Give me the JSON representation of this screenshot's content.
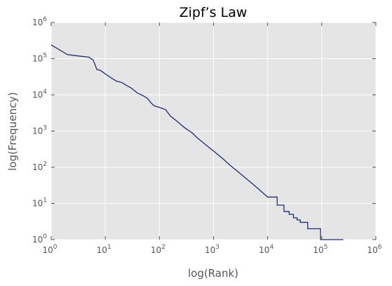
{
  "chart_data": {
    "type": "line",
    "title": "Zipf’s Law",
    "xlabel": "log(Rank)",
    "ylabel": "log(Frequency)",
    "x_scale": "log",
    "y_scale": "log",
    "xlim": [
      1,
      1000000
    ],
    "ylim": [
      1,
      1000000
    ],
    "grid": true,
    "background_color": "#e5e5e5",
    "grid_color": "#ffffff",
    "line_color": "#1f2a7a",
    "x_ticks": [
      {
        "base": "10",
        "exp": "0",
        "value": 1
      },
      {
        "base": "10",
        "exp": "1",
        "value": 10
      },
      {
        "base": "10",
        "exp": "2",
        "value": 100
      },
      {
        "base": "10",
        "exp": "3",
        "value": 1000
      },
      {
        "base": "10",
        "exp": "4",
        "value": 10000
      },
      {
        "base": "10",
        "exp": "5",
        "value": 100000
      },
      {
        "base": "10",
        "exp": "6",
        "value": 1000000
      }
    ],
    "y_ticks": [
      {
        "base": "10",
        "exp": "0",
        "value": 1
      },
      {
        "base": "10",
        "exp": "1",
        "value": 10
      },
      {
        "base": "10",
        "exp": "2",
        "value": 100
      },
      {
        "base": "10",
        "exp": "3",
        "value": 1000
      },
      {
        "base": "10",
        "exp": "4",
        "value": 10000
      },
      {
        "base": "10",
        "exp": "5",
        "value": 100000
      },
      {
        "base": "10",
        "exp": "6",
        "value": 1000000
      }
    ],
    "series": [
      {
        "x": [
          1,
          2,
          3,
          5,
          6,
          7,
          8,
          10,
          13,
          16,
          20,
          25,
          30,
          40,
          50,
          60,
          70,
          80,
          100,
          130,
          160,
          200,
          250,
          300,
          400,
          500,
          700,
          1000,
          1500,
          2000,
          3000,
          5000,
          7000,
          10000,
          15000,
          20000,
          25000,
          30000,
          35000,
          40000,
          45000,
          50000,
          55000,
          60000,
          65000,
          70000,
          75000,
          80000,
          85000,
          90000,
          95000,
          100000,
          150000,
          200000,
          250000
        ],
        "y": [
          240000,
          130000,
          120000,
          110000,
          90000,
          50000,
          48000,
          38000,
          29000,
          24000,
          22000,
          18000,
          15500,
          11000,
          9500,
          8000,
          6000,
          5000,
          4500,
          3900,
          2600,
          2000,
          1500,
          1200,
          900,
          650,
          430,
          280,
          170,
          115,
          70,
          37,
          24,
          15,
          9,
          6,
          5,
          4,
          3.5,
          3,
          3,
          3,
          2,
          2,
          2,
          2,
          2,
          2,
          2,
          2,
          1,
          1,
          1,
          1,
          1
        ]
      }
    ]
  }
}
